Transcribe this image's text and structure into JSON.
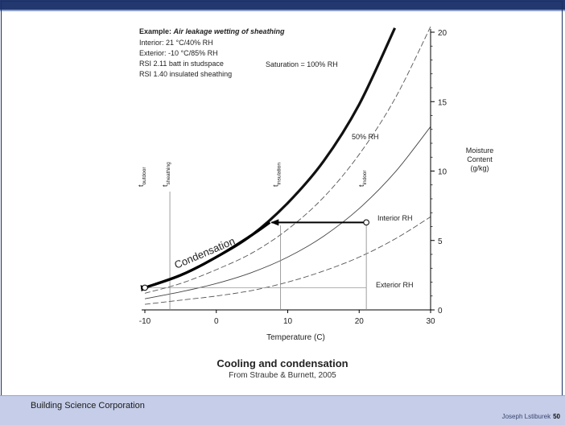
{
  "chart_data": {
    "type": "line",
    "x_axis": {
      "label": "Temperature (C)",
      "range": [
        -10,
        30
      ],
      "ticks": [
        -10,
        0,
        10,
        20,
        30
      ]
    },
    "y_axis": {
      "label_lines": [
        "Moisture",
        "Content",
        "(g/kg)"
      ],
      "range": [
        0,
        20
      ],
      "ticks": [
        0,
        5,
        10,
        15,
        20
      ],
      "position": "right"
    },
    "series": [
      {
        "name": "Saturation = 100% RH",
        "style": "thick-solid",
        "x": [
          -10,
          -5,
          0,
          5,
          10,
          15,
          20,
          25
        ],
        "y": [
          1.6,
          2.5,
          3.8,
          5.4,
          7.7,
          10.7,
          14.8,
          20.3
        ]
      },
      {
        "name": "",
        "style": "dashed",
        "x": [
          -10,
          -5,
          0,
          5,
          10,
          15,
          20,
          25,
          30
        ],
        "y": [
          1.2,
          1.9,
          2.9,
          4.1,
          5.8,
          8.1,
          11.2,
          15.2,
          20.4
        ]
      },
      {
        "name": "50% RH",
        "style": "thin-solid",
        "x": [
          -10,
          -5,
          0,
          5,
          10,
          15,
          20,
          25,
          30
        ],
        "y": [
          0.8,
          1.3,
          1.9,
          2.7,
          3.8,
          5.3,
          7.3,
          9.9,
          13.2
        ]
      },
      {
        "name": "",
        "style": "dashed",
        "x": [
          -10,
          -5,
          0,
          5,
          10,
          15,
          20,
          25,
          30
        ],
        "y": [
          0.4,
          0.7,
          1.0,
          1.4,
          2.0,
          2.8,
          3.8,
          5.1,
          6.7
        ]
      }
    ],
    "annotations": {
      "example_title": "Example:",
      "example_italic": "Air leakage wetting of sheathing",
      "example_lines": [
        "Interior: 21 °C/40% RH",
        "Exterior: -10 °C/85% RH",
        "RSI 2.11 batt in studspace",
        "RSI 1.40 insulated sheathing"
      ],
      "saturation_label": "Saturation = 100% RH",
      "rh50_label": "50% RH",
      "interior_rh_label": "Interior RH",
      "exterior_rh_label": "Exterior RH",
      "condensation_label": "Condensation",
      "temp_markers": [
        {
          "main": "t",
          "sub": "outdoor",
          "x": -10
        },
        {
          "main": "t",
          "sub": "sheathing",
          "x": -6.5
        },
        {
          "main": "t",
          "sub": "insulation",
          "x": 9
        },
        {
          "main": "t",
          "sub": "indoor",
          "x": 21
        }
      ],
      "interior_point": {
        "x": 21,
        "y": 6.3
      },
      "dewpoint": {
        "x": 7.5,
        "y": 6.3
      },
      "exterior_point": {
        "x": -10,
        "y": 1.6
      }
    }
  },
  "caption": {
    "title": "Cooling and condensation",
    "subtitle": "From Straube & Burnett, 2005"
  },
  "footer": {
    "organization": "Building Science Corporation",
    "author": "Joseph Lstiburek",
    "page": "50"
  }
}
